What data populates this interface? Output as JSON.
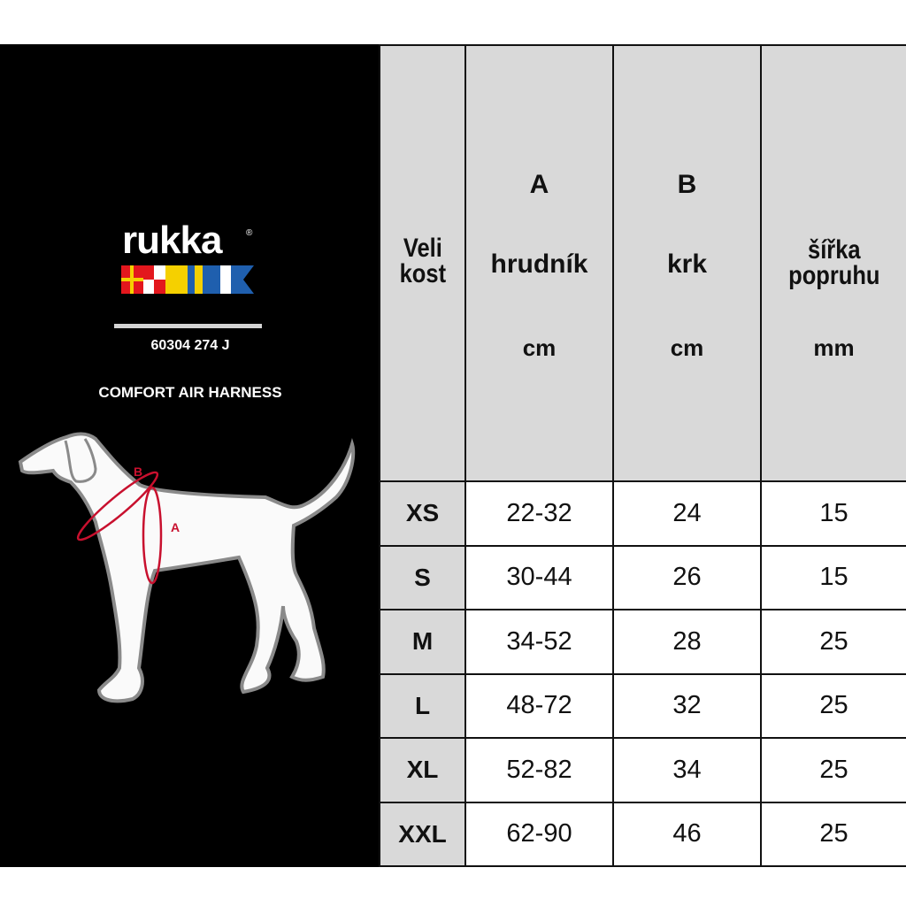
{
  "brand": {
    "logo_text": "rukka",
    "registered_mark": "®"
  },
  "product_code": "60304 274 J",
  "product_name": "COMFORT AIR HARNESS",
  "diagram": {
    "label_neck": "B",
    "label_chest": "A"
  },
  "colors": {
    "panel": "#000000",
    "header_bg": "#d9d9d9",
    "measure_lines": "#c8102e"
  },
  "table": {
    "headers": [
      {
        "letter": "",
        "label": "Veli kost",
        "unit": ""
      },
      {
        "letter": "A",
        "label": "hrudník",
        "unit": "cm"
      },
      {
        "letter": "B",
        "label": "krk",
        "unit": "cm"
      },
      {
        "letter": "",
        "label": "šířka popruhu",
        "unit": "mm"
      }
    ],
    "header_size_line1": "Veli",
    "header_size_line2": "kost",
    "header_width_line1": "šířka",
    "header_width_line2": "popruhu",
    "rows": [
      {
        "size": "XS",
        "chest": "22-32",
        "neck": "24",
        "strap": "15"
      },
      {
        "size": "S",
        "chest": "30-44",
        "neck": "26",
        "strap": "15"
      },
      {
        "size": "M",
        "chest": "34-52",
        "neck": "28",
        "strap": "25"
      },
      {
        "size": "L",
        "chest": "48-72",
        "neck": "32",
        "strap": "25"
      },
      {
        "size": "XL",
        "chest": "52-82",
        "neck": "34",
        "strap": "25"
      },
      {
        "size": "XXL",
        "chest": "62-90",
        "neck": "46",
        "strap": "25"
      }
    ]
  }
}
